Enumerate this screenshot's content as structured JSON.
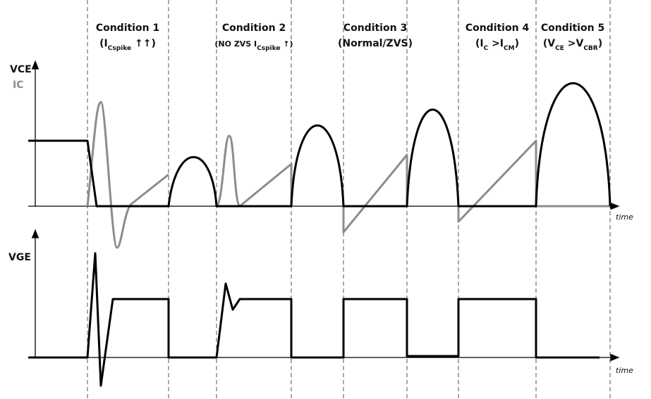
{
  "axes": {
    "vce": "VCE",
    "ic": "IC",
    "vge": "VGE",
    "time_top": "time",
    "time_bottom": "time"
  },
  "conditions": [
    {
      "title": "Condition  1",
      "label": [
        "(I",
        "Cspike",
        " ↑↑)"
      ]
    },
    {
      "title": "Condition  2",
      "label": [
        "(NO ZVS I",
        "Cspike",
        " ↑)"
      ]
    },
    {
      "title": "Condition  3",
      "label": [
        "(Normal/ZVS)"
      ]
    },
    {
      "title": "Condition  4",
      "label": [
        "(I",
        "C",
        " >I",
        "CM",
        ")"
      ]
    },
    {
      "title": "Condition  5",
      "label": [
        "(V",
        "CE",
        " >V",
        "CBR",
        ")"
      ]
    }
  ]
}
